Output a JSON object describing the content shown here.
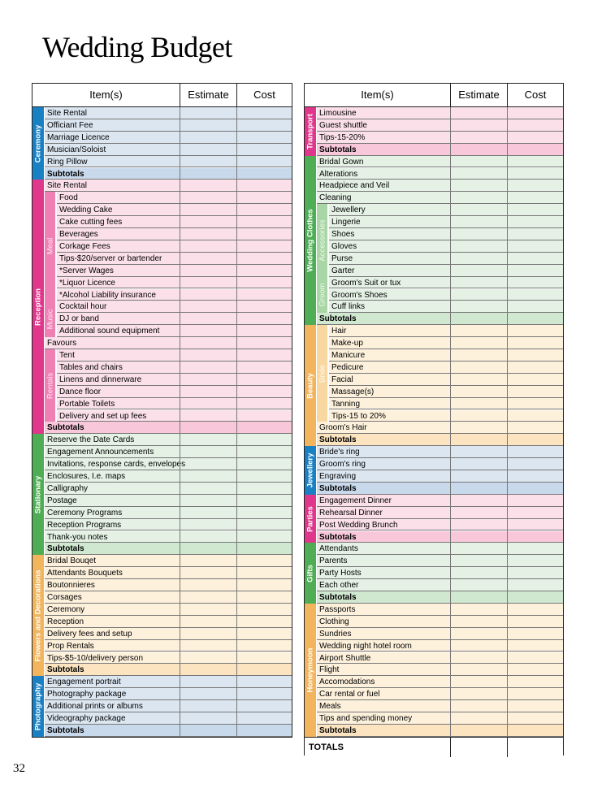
{
  "page": {
    "title": "Wedding Budget",
    "page_number": "32"
  },
  "headers": {
    "item": "Item(s)",
    "estimate": "Estimate",
    "cost": "Cost"
  },
  "totals_label": "TOTALS",
  "colors": {
    "blue": {
      "dark": "#1a80c4",
      "light": "#dbe6f1",
      "sub": "#c8d9ec"
    },
    "pink": {
      "dark": "#e0368b",
      "light": "#fbe0ea",
      "sub": "#f8c8da",
      "mid": "#f07fb4"
    },
    "green": {
      "dark": "#4fae55",
      "light": "#e4f1e4",
      "sub": "#d0e8d0",
      "mid": "#a8d6a4"
    },
    "orange": {
      "dark": "#f2b45d",
      "light": "#fdf1dc",
      "sub": "#fbe4bf",
      "mid": "#f8d8a0"
    }
  },
  "left_sections": [
    {
      "label": "Ceremony",
      "color": "blue",
      "rows": [
        {
          "t": "Site Rental"
        },
        {
          "t": "Officiant Fee"
        },
        {
          "t": "Marriage Licence"
        },
        {
          "t": "Musician/Soloist"
        },
        {
          "t": "Ring Pillow"
        },
        {
          "t": "Subtotals",
          "s": 1
        }
      ]
    },
    {
      "label": "Reception",
      "color": "pink",
      "rows": [
        {
          "t": "Site Rental"
        },
        {
          "t": "Food",
          "i": 1
        },
        {
          "t": "Wedding Cake",
          "i": 1
        },
        {
          "t": "Cake cutting fees",
          "i": 1
        },
        {
          "t": "Beverages",
          "i": 1
        },
        {
          "t": "Corkage Fees",
          "i": 1
        },
        {
          "t": "Tips-$20/server or bartender",
          "i": 1
        },
        {
          "t": "*Server Wages",
          "i": 1
        },
        {
          "t": "*Liquor Licence",
          "i": 1
        },
        {
          "t": "*Alcohol Liability insurance",
          "i": 1
        },
        {
          "t": "Cocktail hour",
          "i": 1
        },
        {
          "t": "DJ or band",
          "i": 1
        },
        {
          "t": "Additional sound equipment",
          "i": 1
        },
        {
          "t": "Favours"
        },
        {
          "t": "Tent",
          "i": 1
        },
        {
          "t": "Tables and chairs",
          "i": 1
        },
        {
          "t": "Linens and dinnerware",
          "i": 1
        },
        {
          "t": "Dance floor",
          "i": 1
        },
        {
          "t": "Portable Toilets",
          "i": 1
        },
        {
          "t": "Delivery and set up fees",
          "i": 1
        },
        {
          "t": "Subtotals",
          "s": 1
        }
      ],
      "subgroups": [
        {
          "label": "Meal",
          "start": 1,
          "end": 9
        },
        {
          "label": "Music",
          "start": 10,
          "end": 12
        },
        {
          "label": "Rentals",
          "start": 14,
          "end": 19
        }
      ]
    },
    {
      "label": "Stationary",
      "color": "green",
      "rows": [
        {
          "t": "Reserve the Date Cards"
        },
        {
          "t": "Engagement Announcements"
        },
        {
          "t": "Invitations, response cards, envelopes"
        },
        {
          "t": "Enclosures, I.e. maps"
        },
        {
          "t": "Calligraphy"
        },
        {
          "t": "Postage"
        },
        {
          "t": "Ceremony Programs"
        },
        {
          "t": "Reception Programs"
        },
        {
          "t": "Thank-you notes"
        },
        {
          "t": "Subtotals",
          "s": 1
        }
      ]
    },
    {
      "label": "Flowers and Decorations",
      "color": "orange",
      "rows": [
        {
          "t": "Bridal Bouqet"
        },
        {
          "t": "Attendants Bouquets"
        },
        {
          "t": "Boutonnieres"
        },
        {
          "t": "Corsages"
        },
        {
          "t": "Ceremony"
        },
        {
          "t": "Reception"
        },
        {
          "t": "Delivery fees and setup"
        },
        {
          "t": "Prop Rentals"
        },
        {
          "t": "Tips-$5-10/delivery person"
        },
        {
          "t": "Subtotals",
          "s": 1
        }
      ]
    },
    {
      "label": "Photography",
      "color": "blue",
      "rows": [
        {
          "t": "Engagement portrait"
        },
        {
          "t": "Photography package"
        },
        {
          "t": "Additional prints or albums"
        },
        {
          "t": "Videography package"
        },
        {
          "t": "Subtotals",
          "s": 1
        }
      ]
    }
  ],
  "right_sections": [
    {
      "label": "Transport",
      "color": "pink",
      "rows": [
        {
          "t": "Limousine"
        },
        {
          "t": "Guest shuttle"
        },
        {
          "t": "Tips-15-20%"
        },
        {
          "t": "Subtotals",
          "s": 1
        }
      ]
    },
    {
      "label": "Wedding Clothes",
      "color": "green",
      "rows": [
        {
          "t": "Bridal Gown"
        },
        {
          "t": "Alterations"
        },
        {
          "t": "Headpiece and Veil"
        },
        {
          "t": "Cleaning"
        },
        {
          "t": "Jewellery",
          "i": 1
        },
        {
          "t": "Lingerie",
          "i": 1
        },
        {
          "t": "Shoes",
          "i": 1
        },
        {
          "t": "Gloves",
          "i": 1
        },
        {
          "t": "Purse",
          "i": 1
        },
        {
          "t": "Garter",
          "i": 1
        },
        {
          "t": "Groom's Suit or tux",
          "i": 1
        },
        {
          "t": "Groom's Shoes",
          "i": 1
        },
        {
          "t": "Cuff links",
          "i": 1
        },
        {
          "t": "Subtotals",
          "s": 1
        }
      ],
      "subgroups": [
        {
          "label": "Accessories",
          "start": 4,
          "end": 9
        },
        {
          "label": "Groom",
          "start": 10,
          "end": 12
        }
      ]
    },
    {
      "label": "Beauty",
      "color": "orange",
      "rows": [
        {
          "t": "Hair",
          "i": 1
        },
        {
          "t": "Make-up",
          "i": 1
        },
        {
          "t": "Manicure",
          "i": 1
        },
        {
          "t": "Pedicure",
          "i": 1
        },
        {
          "t": "Facial",
          "i": 1
        },
        {
          "t": "Massage(s)",
          "i": 1
        },
        {
          "t": "Tanning",
          "i": 1
        },
        {
          "t": "Tips-15 to 20%",
          "i": 1
        },
        {
          "t": "Groom's Hair"
        },
        {
          "t": "Subtotals",
          "s": 1
        }
      ],
      "subgroups": [
        {
          "label": "Bride",
          "start": 0,
          "end": 7
        }
      ]
    },
    {
      "label": "Jewellery",
      "color": "blue",
      "rows": [
        {
          "t": "Bride's ring"
        },
        {
          "t": "Groom's ring"
        },
        {
          "t": "Engraving"
        },
        {
          "t": "Subtotals",
          "s": 1
        }
      ]
    },
    {
      "label": "Parties",
      "color": "pink",
      "rows": [
        {
          "t": "Engagement Dinner"
        },
        {
          "t": "Rehearsal Dinner"
        },
        {
          "t": "Post Wedding Brunch"
        },
        {
          "t": "Subtotals",
          "s": 1
        }
      ]
    },
    {
      "label": "Gifts",
      "color": "green",
      "rows": [
        {
          "t": "Attendants"
        },
        {
          "t": "Parents"
        },
        {
          "t": "Party Hosts"
        },
        {
          "t": "Each other"
        },
        {
          "t": "Subtotals",
          "s": 1
        }
      ]
    },
    {
      "label": "Honeymoon",
      "color": "orange",
      "rows": [
        {
          "t": "Passports"
        },
        {
          "t": "Clothing"
        },
        {
          "t": "Sundries"
        },
        {
          "t": "Wedding night hotel room"
        },
        {
          "t": "Airport Shuttle"
        },
        {
          "t": "Flight"
        },
        {
          "t": "Accomodations"
        },
        {
          "t": "Car rental or fuel"
        },
        {
          "t": "Meals"
        },
        {
          "t": "Tips and spending money"
        },
        {
          "t": "Subtotals",
          "s": 1
        }
      ]
    }
  ]
}
